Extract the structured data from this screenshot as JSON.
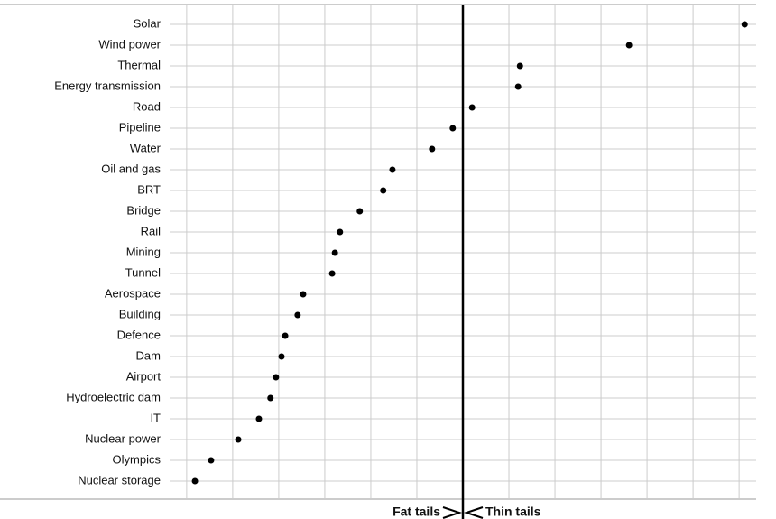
{
  "chart_data": {
    "type": "dot",
    "categories": [
      "Solar",
      "Wind power",
      "Thermal",
      "Energy transmission",
      "Road",
      "Pipeline",
      "Water",
      "Oil and gas",
      "BRT",
      "Bridge",
      "Rail",
      "Mining",
      "Tunnel",
      "Aerospace",
      "Building",
      "Defence",
      "Dam",
      "Airport",
      "Hydroelectric dam",
      "IT",
      "Nuclear power",
      "Olympics",
      "Nuclear storage"
    ],
    "values": [
      6.12,
      3.61,
      1.24,
      1.2,
      0.2,
      -0.22,
      -0.67,
      -1.53,
      -1.73,
      -2.24,
      -2.67,
      -2.78,
      -2.84,
      -3.47,
      -3.59,
      -3.86,
      -3.94,
      -4.06,
      -4.18,
      -4.43,
      -4.88,
      -5.47,
      -5.82
    ],
    "color": "#000000",
    "xlim": [
      -6.37,
      6.37
    ],
    "xticks": [
      -6,
      -5,
      -4,
      -3,
      -2,
      -1,
      0,
      1,
      2,
      3,
      4,
      5,
      6
    ],
    "reference": 0,
    "annotations": [
      "Fat tails",
      "Thin tails"
    ],
    "grid": true
  }
}
